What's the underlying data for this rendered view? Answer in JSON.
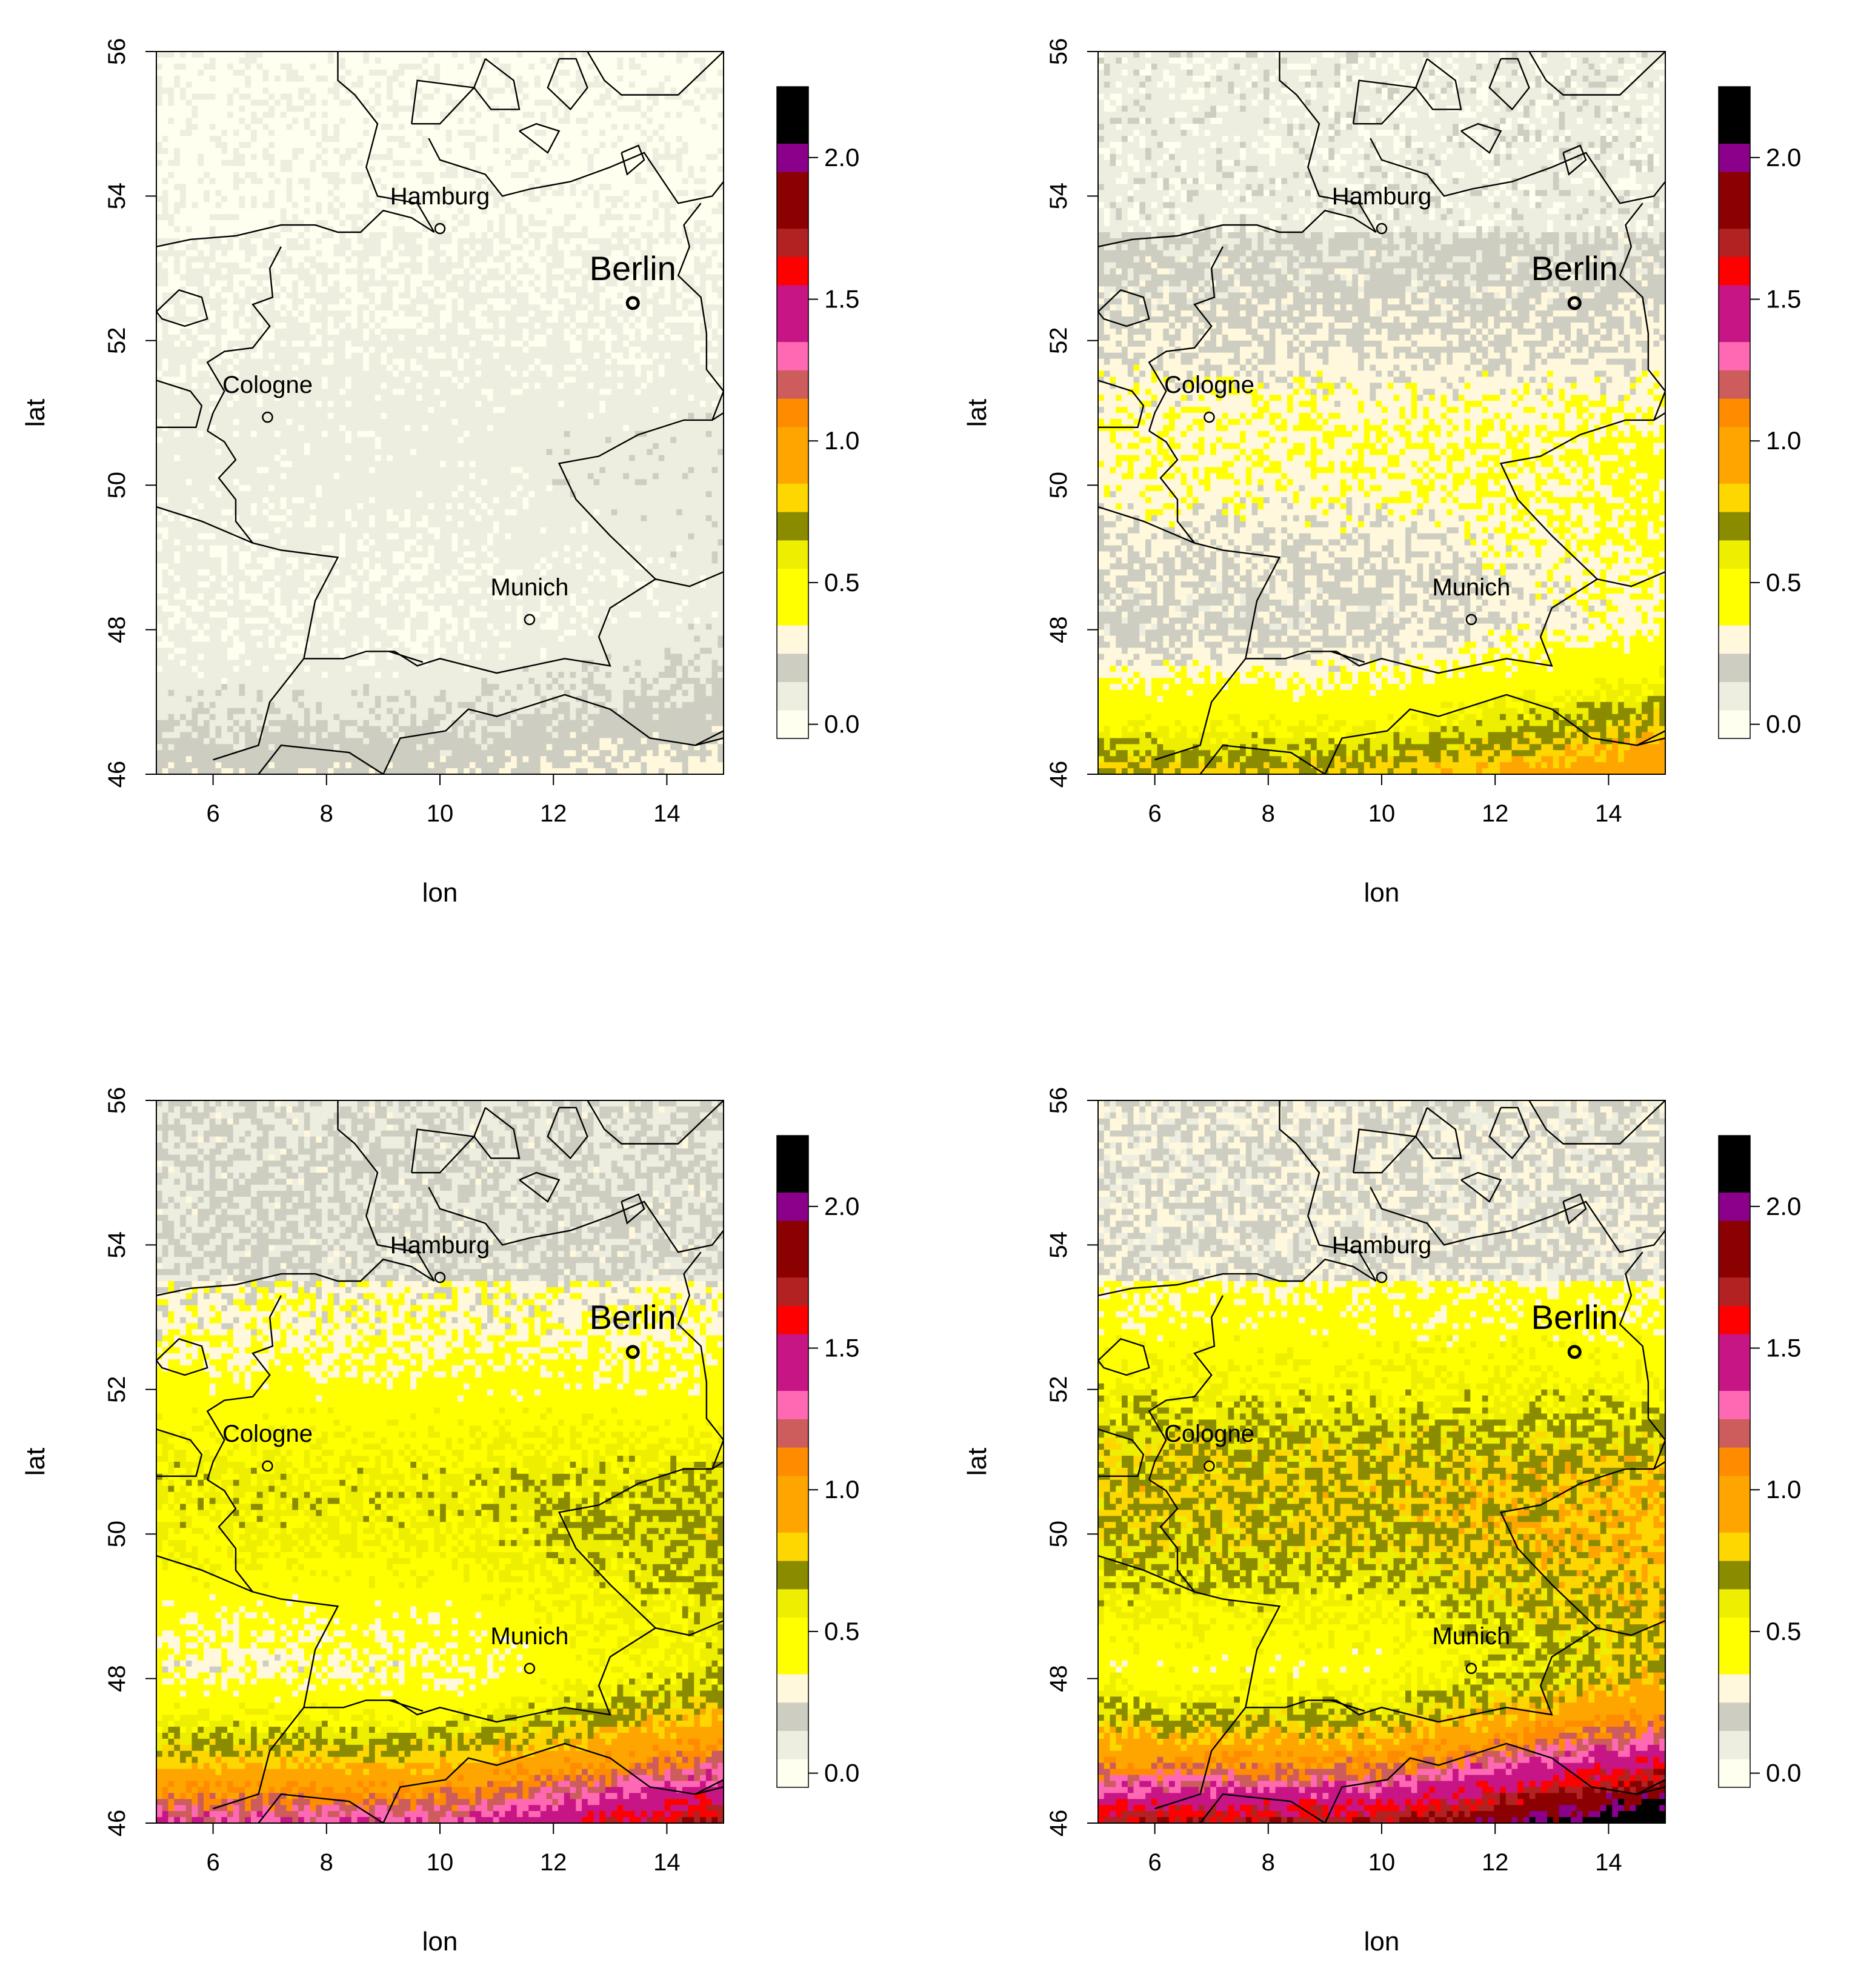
{
  "figure": {
    "panels": [
      {
        "id": "p1",
        "level": 0.08
      },
      {
        "id": "p2",
        "level": 0.28
      },
      {
        "id": "p3",
        "level": 0.48
      },
      {
        "id": "p4",
        "level": 0.62
      }
    ],
    "cities": [
      {
        "name": "Hamburg",
        "lon": 10.0,
        "lat": 53.55,
        "capital": false
      },
      {
        "name": "Berlin",
        "lon": 13.4,
        "lat": 52.52,
        "capital": true
      },
      {
        "name": "Cologne",
        "lon": 6.96,
        "lat": 50.94,
        "capital": false
      },
      {
        "name": "Munich",
        "lon": 11.58,
        "lat": 48.14,
        "capital": false
      }
    ]
  },
  "chart_data": [
    {
      "type": "heatmap",
      "xlabel": "lon",
      "ylabel": "lat",
      "xlim": [
        5,
        15
      ],
      "ylim": [
        46,
        56
      ],
      "xticks": [
        "6",
        "8",
        "10",
        "12",
        "14"
      ],
      "yticks": [
        "46",
        "48",
        "50",
        "52",
        "54",
        "56"
      ],
      "colorbar": {
        "range": [
          -0.05,
          2.25
        ],
        "ticks": [
          "0.0",
          "0.5",
          "1.0",
          "1.5",
          "2.0"
        ]
      },
      "field_description_level": 0.08
    },
    {
      "type": "heatmap",
      "xlabel": "lon",
      "ylabel": "lat",
      "xlim": [
        5,
        15
      ],
      "ylim": [
        46,
        56
      ],
      "xticks": [
        "6",
        "8",
        "10",
        "12",
        "14"
      ],
      "yticks": [
        "46",
        "48",
        "50",
        "52",
        "54",
        "56"
      ],
      "colorbar": {
        "range": [
          -0.05,
          2.25
        ],
        "ticks": [
          "0.0",
          "0.5",
          "1.0",
          "1.5",
          "2.0"
        ]
      },
      "field_description_level": 0.28
    },
    {
      "type": "heatmap",
      "xlabel": "lon",
      "ylabel": "lat",
      "xlim": [
        5,
        15
      ],
      "ylim": [
        46,
        56
      ],
      "xticks": [
        "6",
        "8",
        "10",
        "12",
        "14"
      ],
      "yticks": [
        "46",
        "48",
        "50",
        "52",
        "54",
        "56"
      ],
      "colorbar": {
        "range": [
          -0.05,
          2.25
        ],
        "ticks": [
          "0.0",
          "0.5",
          "1.0",
          "1.5",
          "2.0"
        ]
      },
      "field_description_level": 0.48
    },
    {
      "type": "heatmap",
      "xlabel": "lon",
      "ylabel": "lat",
      "xlim": [
        5,
        15
      ],
      "ylim": [
        46,
        56
      ],
      "xticks": [
        "6",
        "8",
        "10",
        "12",
        "14"
      ],
      "yticks": [
        "46",
        "48",
        "50",
        "52",
        "54",
        "56"
      ],
      "colorbar": {
        "range": [
          -0.05,
          2.25
        ],
        "ticks": [
          "0.0",
          "0.5",
          "1.0",
          "1.5",
          "2.0"
        ]
      },
      "field_description_level": 0.62
    }
  ],
  "colorscale": [
    {
      "from": -0.05,
      "to": 0.05,
      "color": "#FFFFF0"
    },
    {
      "from": 0.05,
      "to": 0.15,
      "color": "#EEEEE0"
    },
    {
      "from": 0.15,
      "to": 0.25,
      "color": "#CDCDC1"
    },
    {
      "from": 0.25,
      "to": 0.35,
      "color": "#FFF8DC"
    },
    {
      "from": 0.35,
      "to": 0.55,
      "color": "#FFFF00"
    },
    {
      "from": 0.55,
      "to": 0.65,
      "color": "#EEEE00"
    },
    {
      "from": 0.65,
      "to": 0.75,
      "color": "#8B8B00"
    },
    {
      "from": 0.75,
      "to": 0.85,
      "color": "#FFD700"
    },
    {
      "from": 0.85,
      "to": 1.05,
      "color": "#FFA500"
    },
    {
      "from": 1.05,
      "to": 1.15,
      "color": "#FF8C00"
    },
    {
      "from": 1.15,
      "to": 1.25,
      "color": "#CD5C5C"
    },
    {
      "from": 1.25,
      "to": 1.35,
      "color": "#FF69B4"
    },
    {
      "from": 1.35,
      "to": 1.55,
      "color": "#C71585"
    },
    {
      "from": 1.55,
      "to": 1.65,
      "color": "#FF0000"
    },
    {
      "from": 1.65,
      "to": 1.75,
      "color": "#B22222"
    },
    {
      "from": 1.75,
      "to": 1.85,
      "color": "#8B0000"
    },
    {
      "from": 1.85,
      "to": 1.95,
      "color": "#8B0000"
    },
    {
      "from": 1.95,
      "to": 2.05,
      "color": "#8B008B"
    },
    {
      "from": 2.05,
      "to": 2.25,
      "color": "#000000"
    }
  ],
  "styles": {
    "axis_color": "#000000",
    "border_color": "#000000",
    "outline_color": "#000000"
  }
}
